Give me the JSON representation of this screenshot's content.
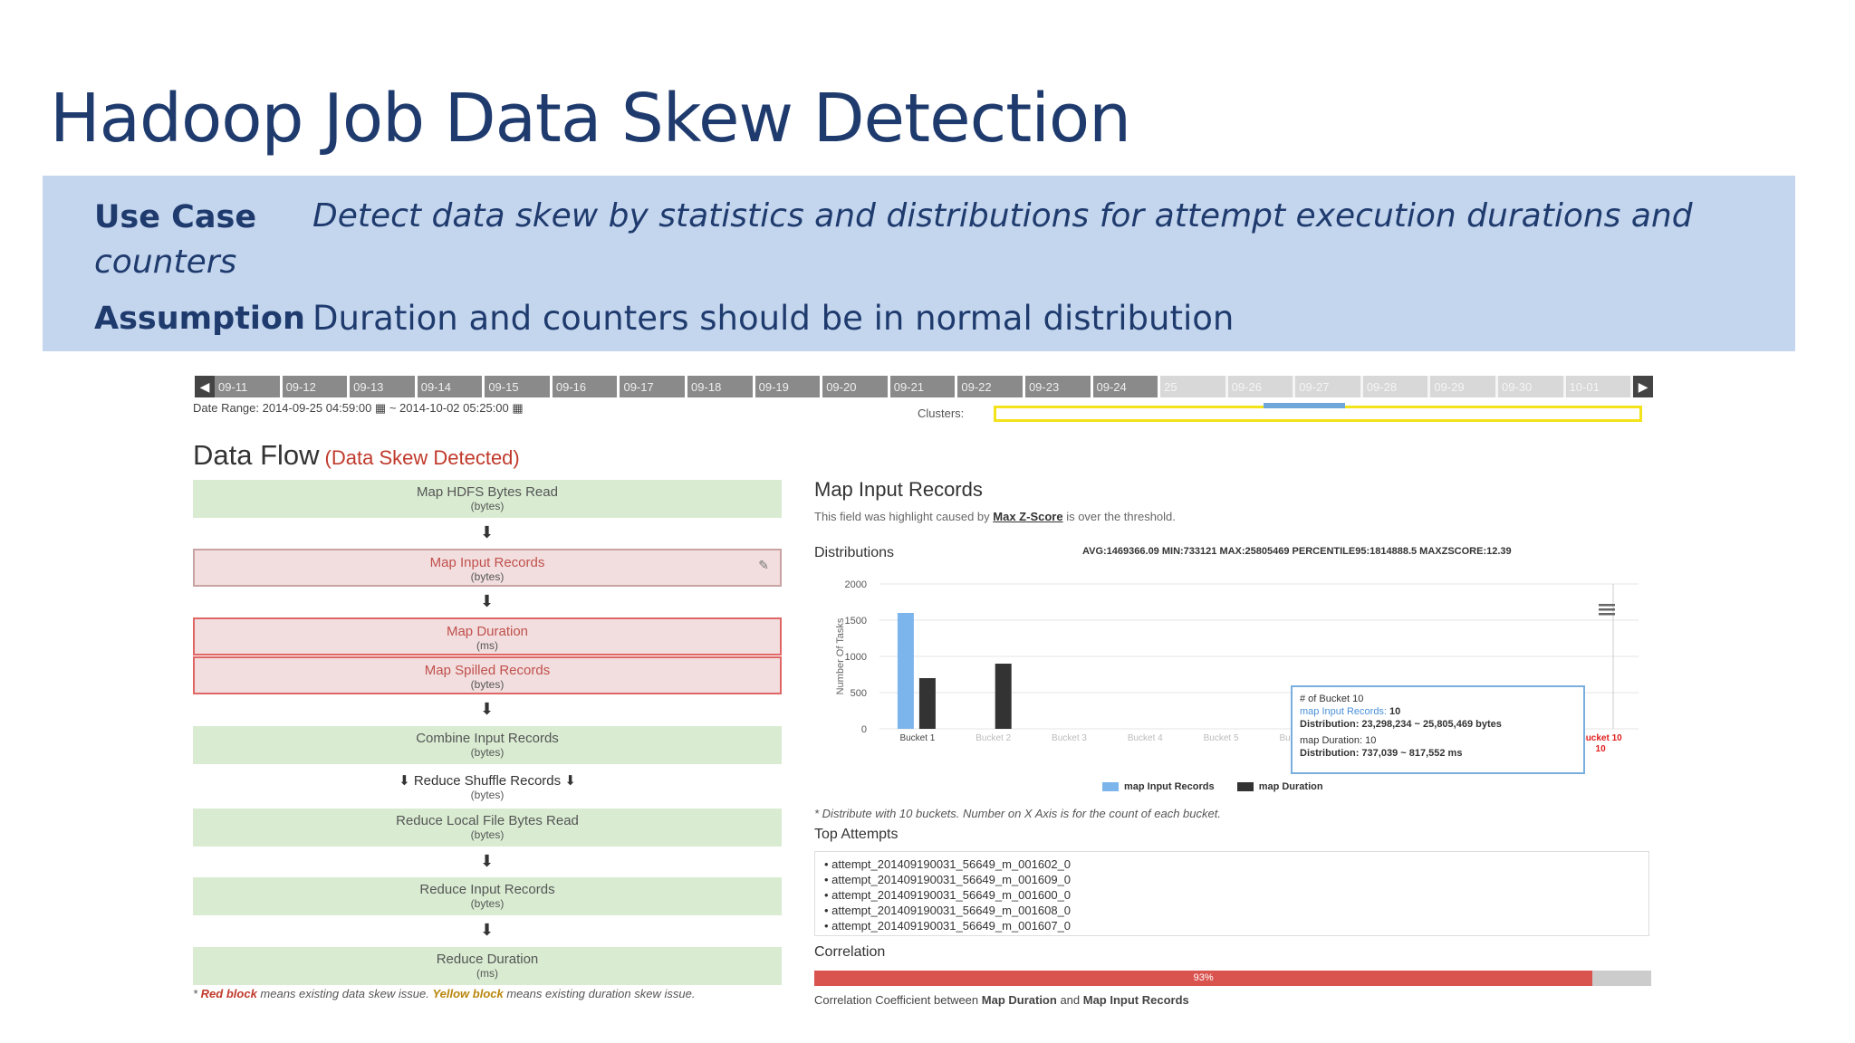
{
  "slide": {
    "title": "Hadoop Job Data Skew Detection",
    "use_case_label": "Use Case",
    "use_case_text_line1": "Detect data skew by statistics and distributions for attempt execution durations and",
    "use_case_text_line2": "counters",
    "assumption_label": "Assumption",
    "assumption_text": "Duration and counters should be in normal distribution"
  },
  "timeline": {
    "dates": [
      "09-11",
      "09-12",
      "09-13",
      "09-14",
      "09-15",
      "09-16",
      "09-17",
      "09-18",
      "09-19",
      "09-20",
      "09-21",
      "09-22",
      "09-23",
      "09-24",
      "25",
      "09-26",
      "09-27",
      "09-28",
      "09-29",
      "09-30",
      "10-01"
    ],
    "date_range": "Date Range: 2014-09-25 04:59:00  ▦ ~ 2014-10-02 05:25:00  ▦",
    "clusters_label": "Clusters:",
    "clusters_color": "#f4e21a"
  },
  "data_flow": {
    "title": "Data Flow",
    "status": "(Data Skew Detected)",
    "blocks": [
      {
        "name": "Map HDFS Bytes Read",
        "unit": "(bytes)"
      },
      {
        "name": "Map Input Records",
        "unit": "(bytes)"
      },
      {
        "name": "Map Duration",
        "unit": "(ms)"
      },
      {
        "name": "Map Spilled Records",
        "unit": "(bytes)"
      },
      {
        "name": "Combine Input Records",
        "unit": "(bytes)"
      },
      {
        "name": "⬇ Reduce Shuffle Records ⬇",
        "unit": "(bytes)"
      },
      {
        "name": "Reduce Local File Bytes Read",
        "unit": "(bytes)"
      },
      {
        "name": "Reduce Input Records",
        "unit": "(bytes)"
      },
      {
        "name": "Reduce Duration",
        "unit": "(ms)"
      }
    ],
    "arrow": "⬇",
    "pin_icon": "📌",
    "footnote_red": "Red block",
    "footnote_mid": " means existing data skew issue. ",
    "footnote_yellow": "Yellow block",
    "footnote_end": " means existing duration skew issue.",
    "footnote_star": "* "
  },
  "map_input_records": {
    "title": "Map Input Records",
    "note_prefix": "This field was highlight caused by ",
    "note_link": "Max Z-Score",
    "note_suffix": " is over the threshold.",
    "distributions_label": "Distributions",
    "stats": "AVG:1469366.09  MIN:733121  MAX:25805469  PERCENTILE95:1814888.5  MAXZSCORE:12.39",
    "tooltip": {
      "line1": "# of Bucket 10",
      "line2_label": "map Input Records:",
      "line2_value": " 10",
      "line3": "Distribution:  23,298,234 ~ 25,805,469 bytes",
      "line4": "map Duration:  10",
      "line5": "Distribution:  737,039 ~ 817,552 ms"
    },
    "distribution_note": "* Distribute with 10 buckets. Number on X Axis is for the count of each bucket.",
    "top_attempts_title": "Top Attempts",
    "top_attempts": [
      "attempt_201409190031_56649_m_001602_0",
      "attempt_201409190031_56649_m_001609_0",
      "attempt_201409190031_56649_m_001600_0",
      "attempt_201409190031_56649_m_001608_0",
      "attempt_201409190031_56649_m_001607_0"
    ],
    "correlation_title": "Correlation",
    "correlation_value": 0.93,
    "correlation_label": "93%",
    "correlation_text_prefix": "Correlation Coefficient between ",
    "correlation_text_a": "Map Duration",
    "correlation_text_mid": " and ",
    "correlation_text_b": "Map Input Records"
  },
  "chart_data": {
    "type": "bar",
    "ylabel": "Number Of Tasks",
    "ylim": [
      0,
      2000
    ],
    "yticks": [
      0,
      500,
      1000,
      1500,
      2000
    ],
    "categories": [
      "Bucket 1",
      "Bucket 2",
      "Bucket 3",
      "Bucket 4",
      "Bucket 5",
      "Bucket 6",
      "Bucket 7",
      "Bucket 8",
      "Bucket 9",
      "Bucket 10"
    ],
    "series": [
      {
        "name": "map Input Records",
        "color": "#7cb5ec",
        "values": [
          1600,
          0,
          0,
          0,
          0,
          0,
          0,
          0,
          0,
          10
        ]
      },
      {
        "name": "map Duration",
        "color": "#333333",
        "values": [
          700,
          900,
          0,
          0,
          0,
          0,
          0,
          0,
          0,
          10
        ]
      }
    ]
  }
}
